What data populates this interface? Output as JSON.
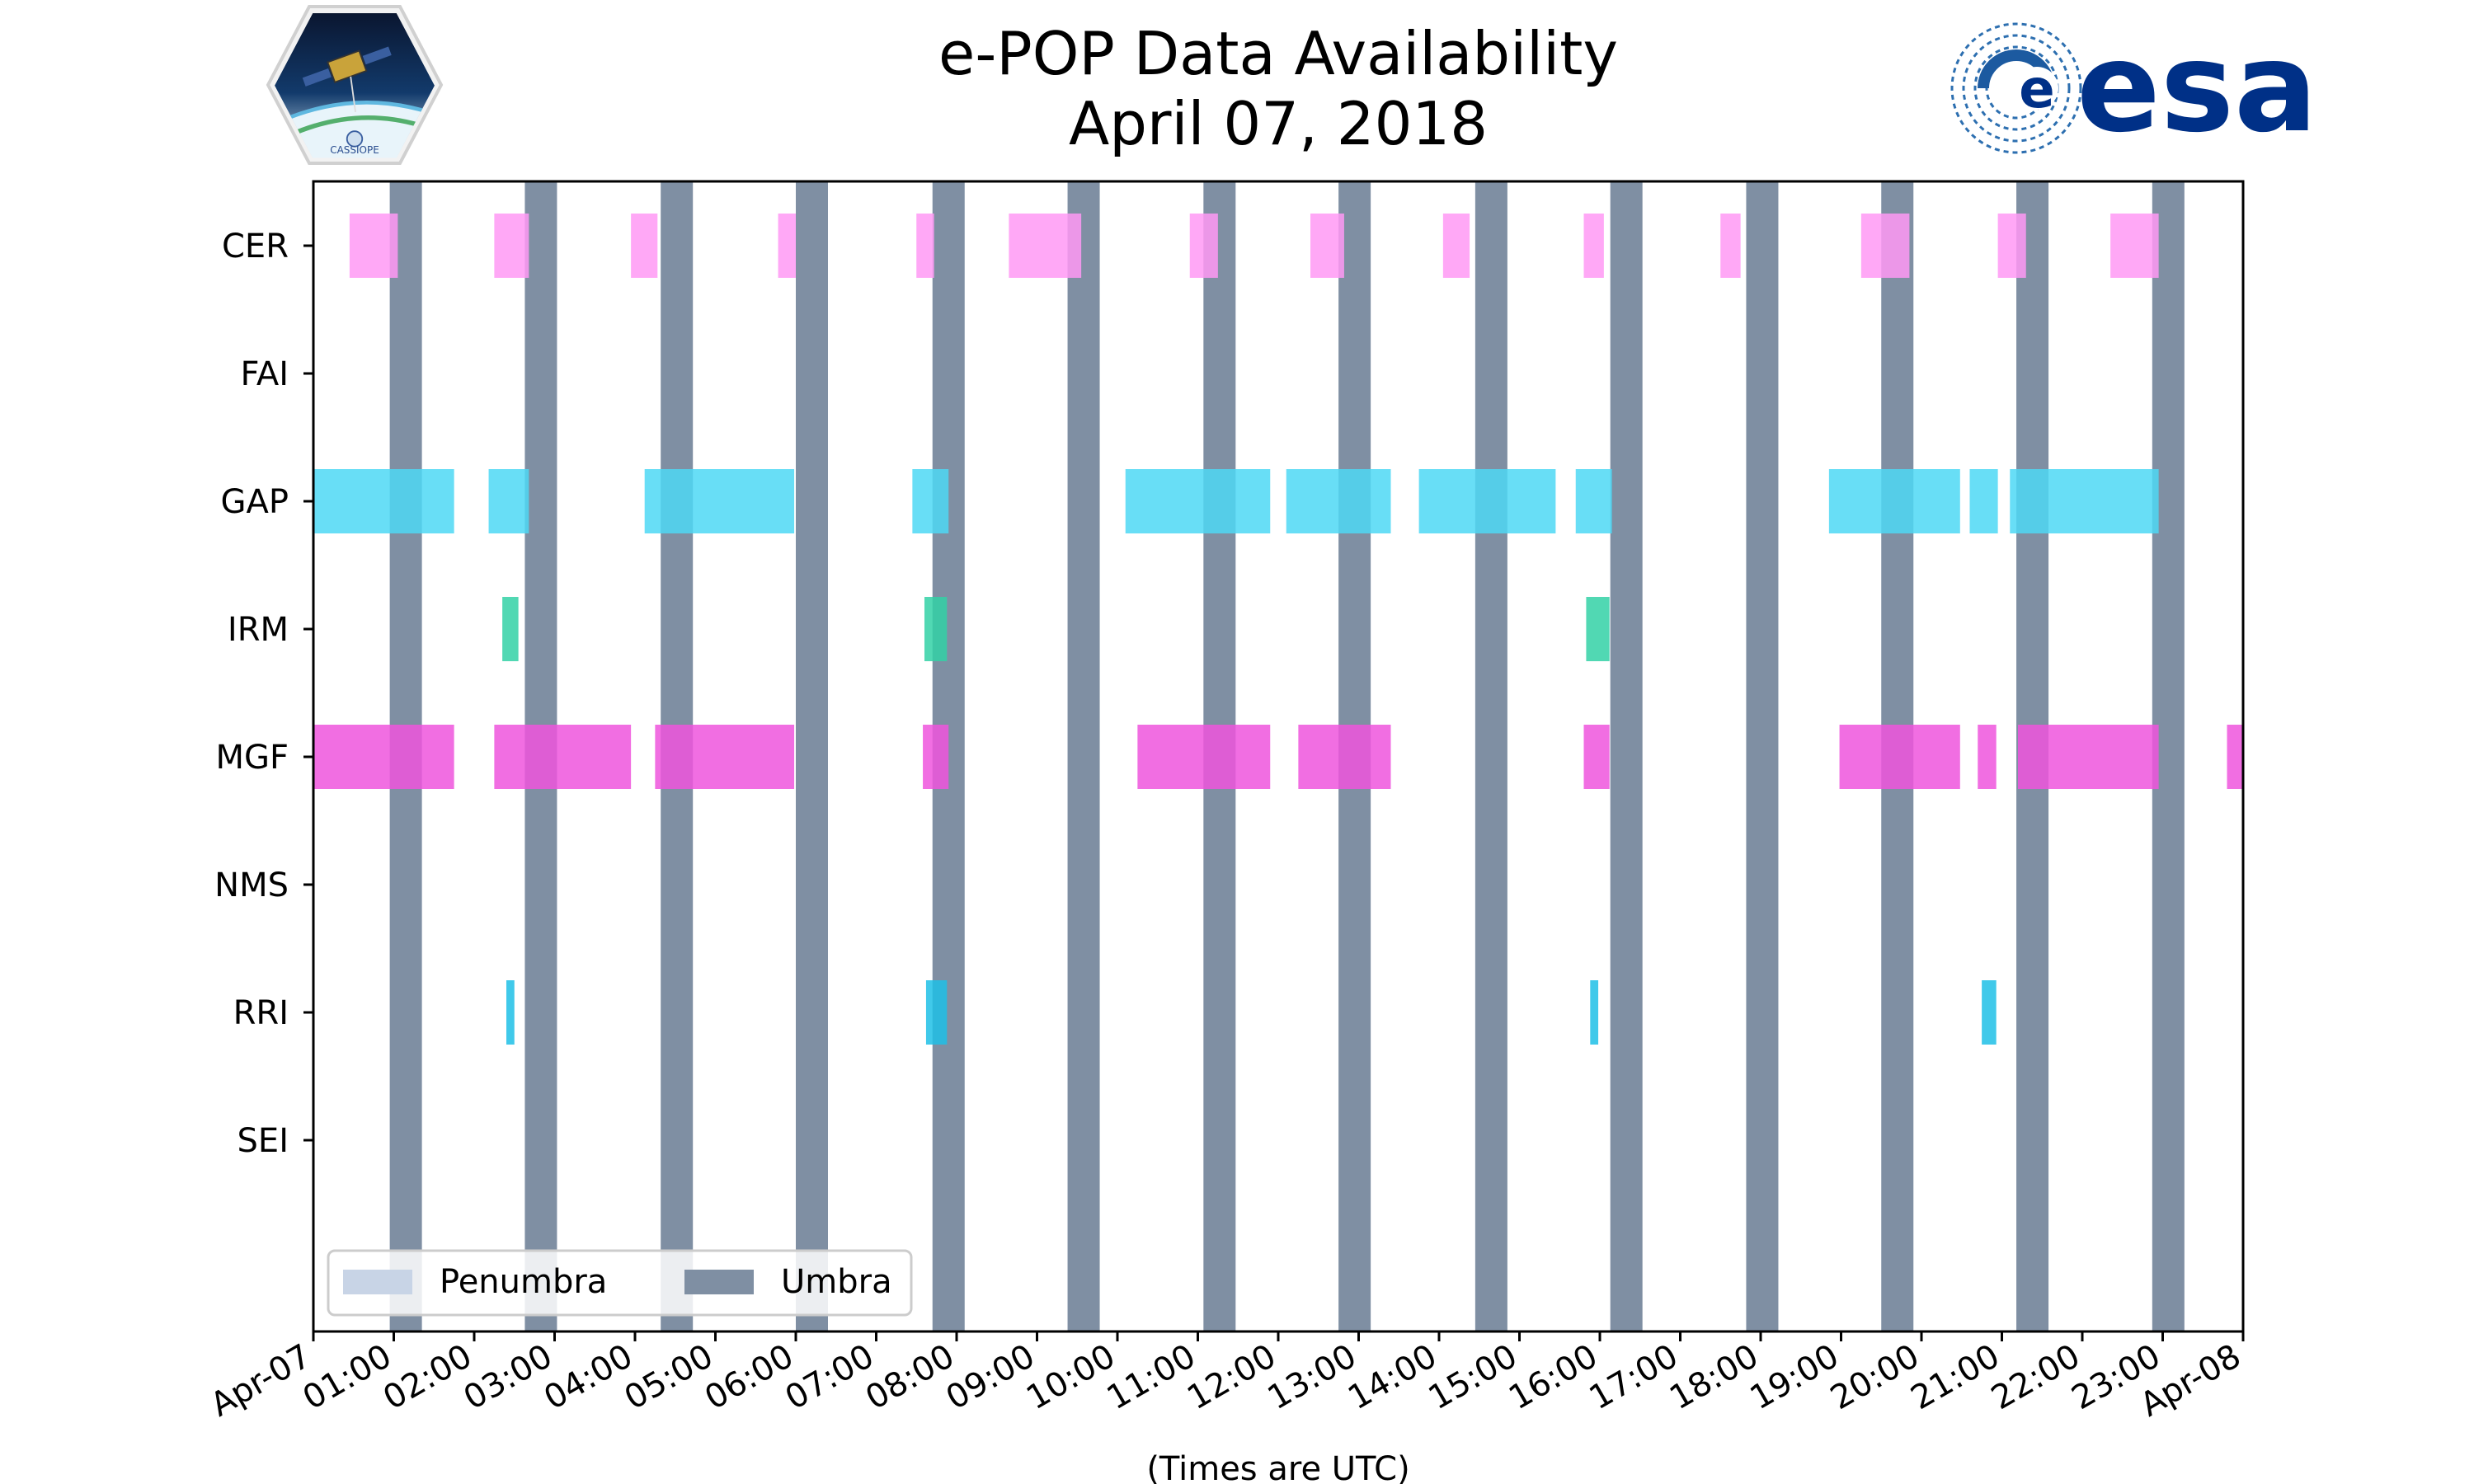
{
  "chart_data": {
    "type": "timeline",
    "title": "e-POP Data Availability",
    "subtitle": "April 07, 2018",
    "xlabel": "(Times are UTC)",
    "ylabel": "",
    "xlim_hours": [
      0,
      24
    ],
    "x_tick_labels": [
      "Apr-07",
      "01:00",
      "02:00",
      "03:00",
      "04:00",
      "05:00",
      "06:00",
      "07:00",
      "08:00",
      "09:00",
      "10:00",
      "11:00",
      "12:00",
      "13:00",
      "14:00",
      "15:00",
      "16:00",
      "17:00",
      "18:00",
      "19:00",
      "20:00",
      "21:00",
      "22:00",
      "23:00",
      "Apr-08"
    ],
    "instruments": [
      "CER",
      "FAI",
      "GAP",
      "IRM",
      "MGF",
      "NMS",
      "RRI",
      "SEI"
    ],
    "instrument_colors": {
      "CER": "#ff99f5",
      "FAI": "#d9c2ff",
      "GAP": "#4dd8f5",
      "IRM": "#33d1a6",
      "MGF": "#ee55dd",
      "NMS": "#b3b3b3",
      "RRI": "#1fc0e6",
      "SEI": "#99cc66"
    },
    "intervals": {
      "CER": [
        [
          0.45,
          1.05
        ],
        [
          2.25,
          2.68
        ],
        [
          3.95,
          4.28
        ],
        [
          5.78,
          6.0
        ],
        [
          7.5,
          7.72
        ],
        [
          8.65,
          9.55
        ],
        [
          10.9,
          11.25
        ],
        [
          12.4,
          12.82
        ],
        [
          14.05,
          14.38
        ],
        [
          15.8,
          16.05
        ],
        [
          17.5,
          17.75
        ],
        [
          19.25,
          19.85
        ],
        [
          20.95,
          21.3
        ],
        [
          22.35,
          22.95
        ]
      ],
      "FAI": [],
      "GAP": [
        [
          0.0,
          1.75
        ],
        [
          2.18,
          2.68
        ],
        [
          4.12,
          5.98
        ],
        [
          7.45,
          7.9
        ],
        [
          10.1,
          11.9
        ],
        [
          12.1,
          13.4
        ],
        [
          13.75,
          15.45
        ],
        [
          15.7,
          16.15
        ],
        [
          18.85,
          20.48
        ],
        [
          20.6,
          20.95
        ],
        [
          21.1,
          22.95
        ]
      ],
      "IRM": [
        [
          2.35,
          2.55
        ],
        [
          7.6,
          7.88
        ],
        [
          15.83,
          16.12
        ]
      ],
      "MGF": [
        [
          0.0,
          1.75
        ],
        [
          2.25,
          3.95
        ],
        [
          4.25,
          5.98
        ],
        [
          7.58,
          7.9
        ],
        [
          10.25,
          11.9
        ],
        [
          12.25,
          13.4
        ],
        [
          15.8,
          16.12
        ],
        [
          18.98,
          20.48
        ],
        [
          20.7,
          20.93
        ],
        [
          21.2,
          22.95
        ],
        [
          23.8,
          24.0
        ]
      ],
      "NMS": [],
      "RRI": [
        [
          2.4,
          2.5
        ],
        [
          7.62,
          7.88
        ],
        [
          15.88,
          15.98
        ],
        [
          20.75,
          20.93
        ]
      ],
      "SEI": []
    },
    "umbra_intervals": [
      [
        0.95,
        1.35
      ],
      [
        2.63,
        3.03
      ],
      [
        4.32,
        4.72
      ],
      [
        6.0,
        6.4
      ],
      [
        7.7,
        8.1
      ],
      [
        9.38,
        9.78
      ],
      [
        11.07,
        11.47
      ],
      [
        12.75,
        13.15
      ],
      [
        14.45,
        14.85
      ],
      [
        16.13,
        16.53
      ],
      [
        17.82,
        18.22
      ],
      [
        19.5,
        19.9
      ],
      [
        21.18,
        21.58
      ],
      [
        22.87,
        23.27
      ]
    ],
    "penumbra_intervals": [],
    "legend": {
      "position": "lower-left",
      "entries": [
        {
          "label": "Penumbra",
          "color": "#c8d4e6"
        },
        {
          "label": "Umbra",
          "color": "#7f8fa3"
        }
      ]
    }
  },
  "logos": {
    "cassiope_text": "CASSIOPE",
    "esa_text": "esa"
  }
}
